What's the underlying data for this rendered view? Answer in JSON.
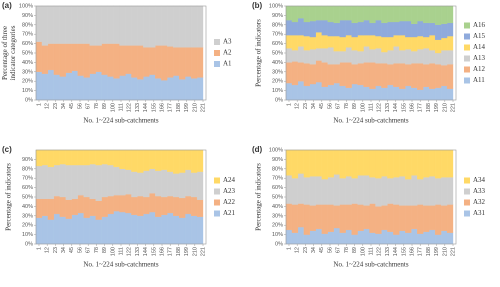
{
  "chart_data": [
    {
      "type": "bar",
      "stacked": true,
      "label": "(a)",
      "y_label": "Percentage of three indicator categories",
      "x_label": "No. 1~224 sub-catchments",
      "x": [
        1,
        9,
        17,
        25,
        33,
        41,
        49,
        57,
        65,
        73,
        81,
        89,
        97,
        105,
        113,
        121,
        129,
        137,
        145,
        153,
        161,
        169,
        177,
        185,
        193,
        201,
        209,
        217
      ],
      "xlim": [
        -3,
        225
      ],
      "xticks": [
        1,
        12,
        23,
        34,
        45,
        56,
        67,
        78,
        89,
        100,
        111,
        122,
        133,
        144,
        155,
        166,
        177,
        188,
        199,
        210,
        221
      ],
      "ylim": [
        0,
        100
      ],
      "yticks": [
        {
          "value": 0,
          "label": "0%"
        },
        {
          "value": 10,
          "label": "10%"
        },
        {
          "value": 20,
          "label": "20%"
        },
        {
          "value": 30,
          "label": "30%"
        },
        {
          "value": 40,
          "label": "40%"
        },
        {
          "value": 50,
          "label": "50%"
        },
        {
          "value": 60,
          "label": "60%"
        },
        {
          "value": 70,
          "label": "70%"
        },
        {
          "value": 80,
          "label": "80%"
        },
        {
          "value": 90,
          "label": "90%"
        },
        {
          "value": 100,
          "label": "100%"
        }
      ],
      "series": [
        {
          "name": "A1",
          "color": "#a9c4e6",
          "values": [
            30,
            28,
            32,
            27,
            25,
            29,
            31,
            26,
            24,
            28,
            30,
            27,
            25,
            23,
            26,
            28,
            24,
            22,
            25,
            27,
            23,
            21,
            24,
            26,
            22,
            25,
            23,
            24
          ]
        },
        {
          "name": "A2",
          "color": "#f4b183",
          "values": [
            32,
            30,
            28,
            33,
            35,
            31,
            29,
            34,
            36,
            30,
            28,
            33,
            35,
            37,
            32,
            30,
            34,
            36,
            31,
            29,
            35,
            37,
            33,
            30,
            34,
            31,
            33,
            32
          ]
        },
        {
          "name": "A3",
          "color": "#cfcfcf",
          "values": [
            38,
            42,
            40,
            40,
            40,
            40,
            40,
            40,
            40,
            42,
            42,
            40,
            40,
            40,
            42,
            42,
            42,
            42,
            44,
            44,
            42,
            42,
            43,
            44,
            44,
            44,
            44,
            44
          ]
        }
      ]
    },
    {
      "type": "bar",
      "stacked": true,
      "label": "(b)",
      "y_label": "Percentage of indicators",
      "x_label": "No. 1~224 sub-catchments",
      "x": [
        1,
        9,
        17,
        25,
        33,
        41,
        49,
        57,
        65,
        73,
        81,
        89,
        97,
        105,
        113,
        121,
        129,
        137,
        145,
        153,
        161,
        169,
        177,
        185,
        193,
        201,
        209,
        217
      ],
      "xlim": [
        -3,
        225
      ],
      "xticks": [
        1,
        12,
        23,
        34,
        45,
        56,
        67,
        78,
        89,
        100,
        111,
        122,
        133,
        144,
        155,
        166,
        177,
        188,
        199,
        210,
        221
      ],
      "ylim": [
        0,
        100
      ],
      "yticks": [
        {
          "value": 0,
          "label": "0%"
        },
        {
          "value": 10,
          "label": "10%"
        },
        {
          "value": 20,
          "label": "20%"
        },
        {
          "value": 30,
          "label": "30%"
        },
        {
          "value": 40,
          "label": "40%"
        },
        {
          "value": 50,
          "label": "50%"
        },
        {
          "value": 60,
          "label": "60%"
        },
        {
          "value": 70,
          "label": "70%"
        },
        {
          "value": 80,
          "label": "80%"
        },
        {
          "value": 90,
          "label": "90%"
        },
        {
          "value": 100,
          "label": "100%"
        }
      ],
      "series": [
        {
          "name": "A11",
          "color": "#a9c4e6",
          "values": [
            18,
            16,
            20,
            15,
            17,
            19,
            14,
            16,
            18,
            15,
            13,
            17,
            16,
            14,
            12,
            15,
            13,
            16,
            14,
            12,
            15,
            13,
            11,
            14,
            12,
            13,
            15,
            12
          ]
        },
        {
          "name": "A12",
          "color": "#f4b183",
          "values": [
            22,
            25,
            20,
            24,
            21,
            23,
            26,
            22,
            20,
            25,
            27,
            21,
            23,
            26,
            28,
            24,
            26,
            22,
            25,
            27,
            23,
            26,
            28,
            24,
            27,
            25,
            22,
            26
          ]
        },
        {
          "name": "A13",
          "color": "#cfcfcf",
          "values": [
            15,
            12,
            17,
            14,
            16,
            13,
            15,
            18,
            14,
            12,
            16,
            15,
            13,
            17,
            14,
            16,
            12,
            15,
            18,
            14,
            16,
            13,
            15,
            17,
            14,
            12,
            16,
            15
          ]
        },
        {
          "name": "A14",
          "color": "#ffd966",
          "values": [
            14,
            16,
            12,
            15,
            13,
            17,
            14,
            12,
            16,
            15,
            13,
            14,
            17,
            12,
            15,
            13,
            16,
            14,
            12,
            16,
            13,
            15,
            14,
            12,
            16,
            14,
            13,
            15
          ]
        },
        {
          "name": "A15",
          "color": "#8faadc",
          "values": [
            16,
            14,
            18,
            15,
            17,
            13,
            16,
            15,
            14,
            18,
            16,
            15,
            14,
            16,
            13,
            17,
            15,
            16,
            14,
            15,
            17,
            14,
            16,
            15,
            13,
            16,
            15,
            14
          ]
        },
        {
          "name": "A16",
          "color": "#a9d18e",
          "values": [
            15,
            17,
            13,
            17,
            16,
            15,
            15,
            17,
            18,
            15,
            15,
            18,
            17,
            15,
            18,
            15,
            18,
            17,
            17,
            16,
            16,
            19,
            16,
            18,
            18,
            20,
            19,
            18
          ]
        }
      ]
    },
    {
      "type": "bar",
      "stacked": true,
      "label": "(c)",
      "y_label": "Percentage of indicators",
      "x_label": "No. 1~224 sub-catchments",
      "x": [
        1,
        9,
        17,
        25,
        33,
        41,
        49,
        57,
        65,
        73,
        81,
        89,
        97,
        105,
        113,
        121,
        129,
        137,
        145,
        153,
        161,
        169,
        177,
        185,
        193,
        201,
        209,
        217
      ],
      "xlim": [
        -3,
        225
      ],
      "xticks": [
        1,
        12,
        23,
        34,
        45,
        56,
        67,
        78,
        89,
        100,
        111,
        122,
        133,
        144,
        155,
        166,
        177,
        188,
        199,
        210,
        221
      ],
      "ylim": [
        0,
        100
      ],
      "yticks": [
        {
          "value": 0,
          "label": "0%"
        },
        {
          "value": 10,
          "label": "10%"
        },
        {
          "value": 20,
          "label": "20%"
        },
        {
          "value": 30,
          "label": "30%"
        },
        {
          "value": 40,
          "label": "40%"
        },
        {
          "value": 50,
          "label": "50%"
        },
        {
          "value": 60,
          "label": "60%"
        },
        {
          "value": 70,
          "label": "70%"
        },
        {
          "value": 80,
          "label": "80%"
        },
        {
          "value": 90,
          "label": "90%"
        }
      ],
      "series": [
        {
          "name": "A21",
          "color": "#a9c4e6",
          "values": [
            28,
            30,
            26,
            32,
            29,
            27,
            31,
            33,
            28,
            30,
            26,
            29,
            32,
            35,
            34,
            33,
            31,
            30,
            32,
            34,
            29,
            31,
            33,
            30,
            28,
            32,
            30,
            29
          ]
        },
        {
          "name": "A22",
          "color": "#f4b183",
          "values": [
            20,
            18,
            22,
            19,
            21,
            20,
            17,
            19,
            22,
            18,
            20,
            21,
            19,
            17,
            18,
            20,
            19,
            21,
            18,
            20,
            22,
            19,
            18,
            20,
            21,
            19,
            20,
            18
          ]
        },
        {
          "name": "A23",
          "color": "#cfcfcf",
          "values": [
            35,
            36,
            34,
            33,
            35,
            37,
            36,
            32,
            34,
            37,
            38,
            35,
            33,
            30,
            28,
            26,
            27,
            25,
            28,
            26,
            27,
            29,
            26,
            25,
            27,
            28,
            26,
            30
          ]
        },
        {
          "name": "A24",
          "color": "#ffd966",
          "values": [
            17,
            16,
            18,
            16,
            15,
            16,
            16,
            16,
            16,
            15,
            16,
            15,
            16,
            18,
            20,
            21,
            23,
            24,
            22,
            20,
            22,
            21,
            23,
            25,
            24,
            21,
            24,
            23
          ]
        }
      ]
    },
    {
      "type": "bar",
      "stacked": true,
      "label": "(d)",
      "y_label": "Percentage of indicators",
      "x_label": "No. 1~224 sub-catchments",
      "x": [
        1,
        9,
        17,
        25,
        33,
        41,
        49,
        57,
        65,
        73,
        81,
        89,
        97,
        105,
        113,
        121,
        129,
        137,
        145,
        153,
        161,
        169,
        177,
        185,
        193,
        201,
        209,
        217
      ],
      "xlim": [
        -3,
        225
      ],
      "xticks": [
        1,
        12,
        23,
        34,
        45,
        56,
        67,
        78,
        89,
        100,
        111,
        122,
        133,
        144,
        155,
        166,
        177,
        188,
        199,
        210,
        221
      ],
      "ylim": [
        0,
        100
      ],
      "yticks": [
        {
          "value": 0,
          "label": "0%"
        },
        {
          "value": 10,
          "label": "10%"
        },
        {
          "value": 20,
          "label": "20%"
        },
        {
          "value": 30,
          "label": "30%"
        },
        {
          "value": 40,
          "label": "40%"
        },
        {
          "value": 50,
          "label": "50%"
        },
        {
          "value": 60,
          "label": "60%"
        },
        {
          "value": 70,
          "label": "70%"
        },
        {
          "value": 80,
          "label": "80%"
        },
        {
          "value": 90,
          "label": "90%"
        },
        {
          "value": 100,
          "label": "100%"
        }
      ],
      "series": [
        {
          "name": "A31",
          "color": "#a9c4e6",
          "values": [
            15,
            12,
            18,
            10,
            14,
            16,
            11,
            13,
            17,
            12,
            15,
            10,
            14,
            16,
            12,
            11,
            15,
            13,
            10,
            14,
            12,
            16,
            11,
            13,
            15,
            10,
            14,
            12
          ]
        },
        {
          "name": "A32",
          "color": "#f4b183",
          "values": [
            28,
            30,
            25,
            32,
            27,
            26,
            31,
            29,
            24,
            30,
            27,
            33,
            28,
            25,
            31,
            29,
            26,
            30,
            32,
            27,
            29,
            25,
            31,
            28,
            26,
            32,
            27,
            30
          ]
        },
        {
          "name": "A33",
          "color": "#cfcfcf",
          "values": [
            30,
            28,
            32,
            29,
            31,
            30,
            27,
            29,
            33,
            28,
            30,
            27,
            31,
            32,
            28,
            30,
            31,
            27,
            29,
            31,
            28,
            32,
            27,
            30,
            31,
            28,
            30,
            29
          ]
        },
        {
          "name": "A34",
          "color": "#ffd966",
          "values": [
            27,
            30,
            25,
            29,
            28,
            28,
            31,
            29,
            26,
            30,
            28,
            30,
            27,
            27,
            29,
            30,
            28,
            30,
            29,
            28,
            31,
            27,
            31,
            29,
            28,
            30,
            29,
            29
          ]
        }
      ]
    }
  ]
}
